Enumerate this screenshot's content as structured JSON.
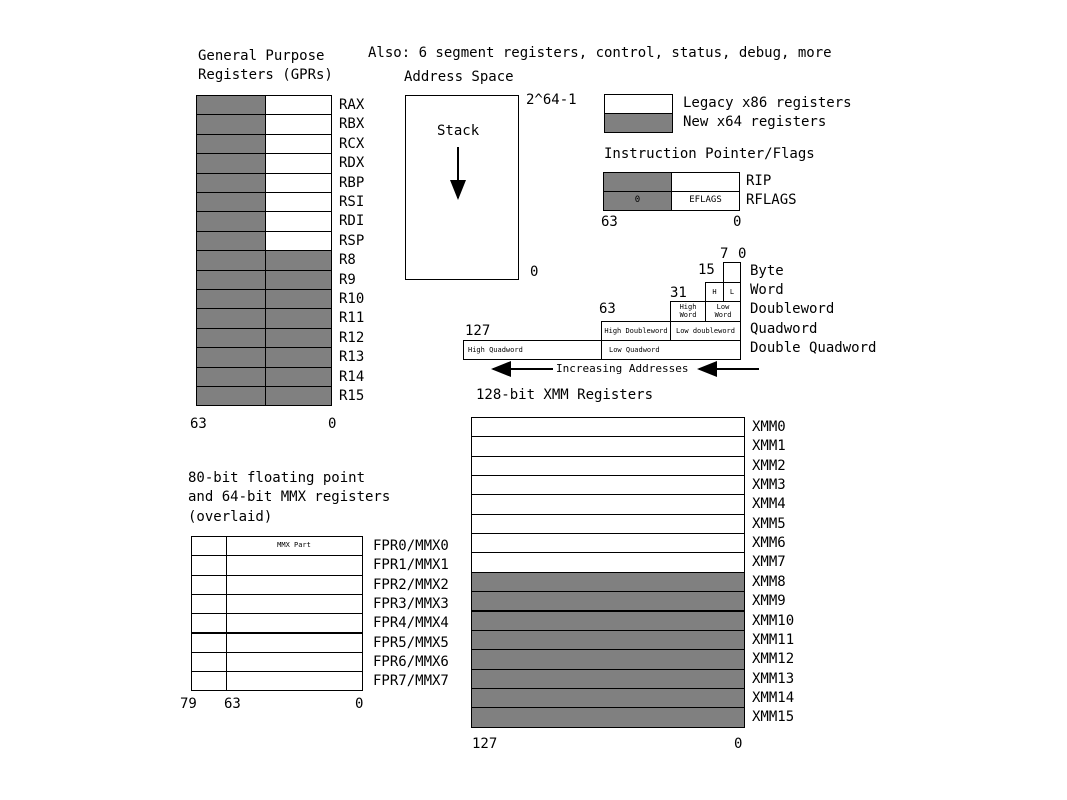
{
  "colors": {
    "legacy": "#ffffff",
    "new": "#808080",
    "line": "#000000"
  },
  "top_note": "Also: 6 segment registers, control, status, debug, more",
  "gpr": {
    "title_line1": "General Purpose",
    "title_line2": "Registers (GPRs)",
    "registers": [
      {
        "name": "RAX",
        "legacy": true
      },
      {
        "name": "RBX",
        "legacy": true
      },
      {
        "name": "RCX",
        "legacy": true
      },
      {
        "name": "RDX",
        "legacy": true
      },
      {
        "name": "RBP",
        "legacy": true
      },
      {
        "name": "RSI",
        "legacy": true
      },
      {
        "name": "RDI",
        "legacy": true
      },
      {
        "name": "RSP",
        "legacy": true
      },
      {
        "name": "R8",
        "legacy": false
      },
      {
        "name": "R9",
        "legacy": false
      },
      {
        "name": "R10",
        "legacy": false
      },
      {
        "name": "R11",
        "legacy": false
      },
      {
        "name": "R12",
        "legacy": false
      },
      {
        "name": "R13",
        "legacy": false
      },
      {
        "name": "R14",
        "legacy": false
      },
      {
        "name": "R15",
        "legacy": false
      }
    ],
    "bit_high": "63",
    "bit_low": "0"
  },
  "address_space": {
    "title": "Address Space",
    "top_label": "2^64-1",
    "bottom_label": "0",
    "stack_label": "Stack"
  },
  "legend": {
    "legacy_label": "Legacy x86 registers",
    "new_label": "New x64 registers"
  },
  "ip_flags": {
    "title": "Instruction Pointer/Flags",
    "rip_label": "RIP",
    "rflags_label": "RFLAGS",
    "zero_label": "0",
    "eflags_label": "EFLAGS",
    "bit_high": "63",
    "bit_low": "0"
  },
  "sizes": {
    "bits": {
      "b7": "7",
      "b0": "0",
      "b15": "15",
      "b31": "31",
      "b63": "63",
      "b127": "127"
    },
    "labels": [
      "Byte",
      "Word",
      "Doubleword",
      "Quadword",
      "Double Quadword"
    ],
    "h": "H",
    "l": "L",
    "high_word": "High\nWord",
    "low_word": "Low\nWord",
    "high_dword": "High Doubleword",
    "low_dword": "Low doubleword",
    "high_qword": "High Quadword",
    "low_qword": "Low Quadword",
    "increasing": "Increasing Addresses"
  },
  "xmm": {
    "title": "128-bit XMM Registers",
    "registers": [
      {
        "name": "XMM0",
        "legacy": true
      },
      {
        "name": "XMM1",
        "legacy": true
      },
      {
        "name": "XMM2",
        "legacy": true
      },
      {
        "name": "XMM3",
        "legacy": true
      },
      {
        "name": "XMM4",
        "legacy": true
      },
      {
        "name": "XMM5",
        "legacy": true
      },
      {
        "name": "XMM6",
        "legacy": true
      },
      {
        "name": "XMM7",
        "legacy": true
      },
      {
        "name": "XMM8",
        "legacy": false
      },
      {
        "name": "XMM9",
        "legacy": false
      },
      {
        "name": "XMM10",
        "legacy": false
      },
      {
        "name": "XMM11",
        "legacy": false
      },
      {
        "name": "XMM12",
        "legacy": false
      },
      {
        "name": "XMM13",
        "legacy": false
      },
      {
        "name": "XMM14",
        "legacy": false
      },
      {
        "name": "XMM15",
        "legacy": false
      }
    ],
    "bit_high": "127",
    "bit_low": "0"
  },
  "fpr": {
    "title_line1": "80-bit floating point",
    "title_line2": "and 64-bit MMX registers",
    "title_line3": "(overlaid)",
    "mmx_part": "MMX Part",
    "registers": [
      "FPR0/MMX0",
      "FPR1/MMX1",
      "FPR2/MMX2",
      "FPR3/MMX3",
      "FPR4/MMX4",
      "FPR5/MMX5",
      "FPR6/MMX6",
      "FPR7/MMX7"
    ],
    "bit_79": "79",
    "bit_63": "63",
    "bit_0": "0"
  }
}
